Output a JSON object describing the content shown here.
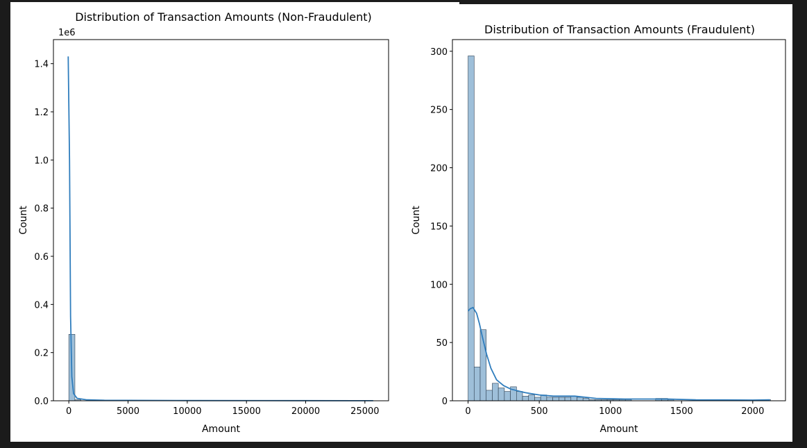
{
  "figure": {
    "background": "#ffffff",
    "page_background": "#1b1b1b"
  },
  "colors": {
    "bar_fill": "#9ebfd9",
    "bar_edge": "#2c3e50",
    "kde_line": "#2f7dbd",
    "axis": "#000000"
  },
  "chart_data": [
    {
      "type": "bar",
      "subtype": "histogram-with-kde",
      "title": "Distribution of Transaction Amounts (Non-Fraudulent)",
      "xlabel": "Amount",
      "ylabel": "Count",
      "offset_label": "1e6",
      "xlim": [
        -1300,
        27000
      ],
      "ylim": [
        0,
        1500000
      ],
      "xticks": [
        0,
        5000,
        10000,
        15000,
        20000,
        25000
      ],
      "xtick_labels": [
        "0",
        "5000",
        "10000",
        "15000",
        "20000",
        "25000"
      ],
      "yticks": [
        0,
        200000,
        400000,
        600000,
        800000,
        1000000,
        1200000,
        1400000
      ],
      "ytick_labels": [
        "0.0",
        "0.2",
        "0.4",
        "0.6",
        "0.8",
        "1.0",
        "1.2",
        "1.4"
      ],
      "grid": false,
      "bins": [
        {
          "x0": 0,
          "x1": 513,
          "count": 276000
        },
        {
          "x0": 513,
          "x1": 1026,
          "count": 4000
        },
        {
          "x0": 1026,
          "x1": 1539,
          "count": 600
        }
      ],
      "kde": [
        {
          "x": -50,
          "y": 1430000
        },
        {
          "x": 60,
          "y": 1000000
        },
        {
          "x": 150,
          "y": 350000
        },
        {
          "x": 250,
          "y": 100000
        },
        {
          "x": 400,
          "y": 30000
        },
        {
          "x": 700,
          "y": 10000
        },
        {
          "x": 1500,
          "y": 4000
        },
        {
          "x": 3000,
          "y": 2000
        },
        {
          "x": 10000,
          "y": 1000
        },
        {
          "x": 20000,
          "y": 500
        },
        {
          "x": 25700,
          "y": 300
        }
      ]
    },
    {
      "type": "bar",
      "subtype": "histogram-with-kde",
      "title": "Distribution of Transaction Amounts (Fraudulent)",
      "xlabel": "Amount",
      "ylabel": "Count",
      "xlim": [
        -110,
        2230
      ],
      "ylim": [
        0,
        310
      ],
      "xticks": [
        0,
        500,
        1000,
        1500,
        2000
      ],
      "xtick_labels": [
        "0",
        "500",
        "1000",
        "1500",
        "2000"
      ],
      "yticks": [
        0,
        50,
        100,
        150,
        200,
        250,
        300
      ],
      "ytick_labels": [
        "0",
        "50",
        "100",
        "150",
        "200",
        "250",
        "300"
      ],
      "grid": false,
      "bins": [
        {
          "x0": 0,
          "x1": 42.5,
          "count": 296
        },
        {
          "x0": 42.5,
          "x1": 85,
          "count": 29
        },
        {
          "x0": 85,
          "x1": 127.5,
          "count": 61
        },
        {
          "x0": 127.5,
          "x1": 170,
          "count": 9
        },
        {
          "x0": 170,
          "x1": 212.5,
          "count": 15
        },
        {
          "x0": 212.5,
          "x1": 255,
          "count": 11
        },
        {
          "x0": 255,
          "x1": 297.5,
          "count": 8
        },
        {
          "x0": 297.5,
          "x1": 340,
          "count": 12
        },
        {
          "x0": 340,
          "x1": 382.5,
          "count": 8
        },
        {
          "x0": 382.5,
          "x1": 425,
          "count": 4
        },
        {
          "x0": 425,
          "x1": 467.5,
          "count": 5
        },
        {
          "x0": 467.5,
          "x1": 510,
          "count": 3
        },
        {
          "x0": 510,
          "x1": 552.5,
          "count": 5
        },
        {
          "x0": 552.5,
          "x1": 595,
          "count": 3
        },
        {
          "x0": 595,
          "x1": 637.5,
          "count": 3
        },
        {
          "x0": 637.5,
          "x1": 680,
          "count": 3
        },
        {
          "x0": 680,
          "x1": 722.5,
          "count": 3
        },
        {
          "x0": 722.5,
          "x1": 765,
          "count": 4
        },
        {
          "x0": 765,
          "x1": 807.5,
          "count": 3
        },
        {
          "x0": 807.5,
          "x1": 850,
          "count": 2
        },
        {
          "x0": 850,
          "x1": 892.5,
          "count": 1
        },
        {
          "x0": 892.5,
          "x1": 935,
          "count": 1
        },
        {
          "x0": 935,
          "x1": 977.5,
          "count": 1
        },
        {
          "x0": 977.5,
          "x1": 1020,
          "count": 1
        },
        {
          "x0": 1020,
          "x1": 1062.5,
          "count": 1
        },
        {
          "x0": 1062.5,
          "x1": 1105,
          "count": 1
        },
        {
          "x0": 1105,
          "x1": 1147.5,
          "count": 1
        },
        {
          "x0": 1317.5,
          "x1": 1360,
          "count": 2
        },
        {
          "x0": 1360,
          "x1": 1402.5,
          "count": 2
        },
        {
          "x0": 1402.5,
          "x1": 1445,
          "count": 1
        },
        {
          "x0": 1785,
          "x1": 1827.5,
          "count": 1
        },
        {
          "x0": 2082.5,
          "x1": 2125,
          "count": 1
        }
      ],
      "kde": [
        {
          "x": 0,
          "y": 77
        },
        {
          "x": 15,
          "y": 79
        },
        {
          "x": 35,
          "y": 80
        },
        {
          "x": 60,
          "y": 75
        },
        {
          "x": 80,
          "y": 66
        },
        {
          "x": 100,
          "y": 55
        },
        {
          "x": 130,
          "y": 40
        },
        {
          "x": 160,
          "y": 28
        },
        {
          "x": 200,
          "y": 18
        },
        {
          "x": 250,
          "y": 13
        },
        {
          "x": 300,
          "y": 10
        },
        {
          "x": 400,
          "y": 7
        },
        {
          "x": 500,
          "y": 5
        },
        {
          "x": 600,
          "y": 4
        },
        {
          "x": 750,
          "y": 4
        },
        {
          "x": 900,
          "y": 2
        },
        {
          "x": 1100,
          "y": 1.5
        },
        {
          "x": 1300,
          "y": 1.5
        },
        {
          "x": 1400,
          "y": 1.5
        },
        {
          "x": 1600,
          "y": 0.8
        },
        {
          "x": 1800,
          "y": 0.7
        },
        {
          "x": 2000,
          "y": 0.6
        },
        {
          "x": 2120,
          "y": 0.8
        }
      ]
    }
  ]
}
